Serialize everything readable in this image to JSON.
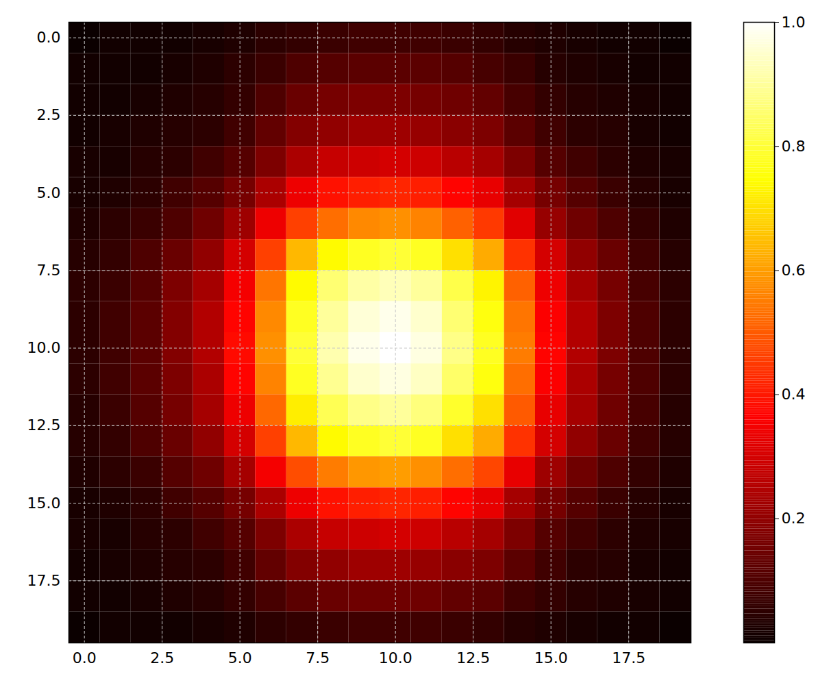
{
  "chart_data": {
    "type": "heatmap",
    "x": [
      0,
      1,
      2,
      3,
      4,
      5,
      6,
      7,
      8,
      9,
      10,
      11,
      12,
      13,
      14,
      15,
      16,
      17,
      18,
      19
    ],
    "y": [
      0,
      1,
      2,
      3,
      4,
      5,
      6,
      7,
      8,
      9,
      10,
      11,
      12,
      13,
      14,
      15,
      16,
      17,
      18,
      19
    ],
    "xlim": [
      -0.5,
      19.5
    ],
    "ylim": [
      19.5,
      -0.5
    ],
    "xticks": [
      {
        "value": 0,
        "label": "0.0"
      },
      2.5,
      {
        "value": 5,
        "label": "5.0"
      },
      7.5,
      {
        "value": 10,
        "label": "10.0"
      },
      12.5,
      {
        "value": 15,
        "label": "15.0"
      },
      17.5
    ],
    "yticks": [
      {
        "value": 0,
        "label": "0.0"
      },
      2.5,
      {
        "value": 5,
        "label": "5.0"
      },
      7.5,
      {
        "value": 10,
        "label": "10.0"
      },
      12.5,
      {
        "value": 15,
        "label": "15.0"
      },
      17.5
    ],
    "grid": true,
    "color": "hot",
    "color_range": [
      0,
      1
    ],
    "color_ticks": [
      0.2,
      0.4,
      0.6,
      0.8,
      {
        "value": 1,
        "label": "1.0"
      }
    ],
    "cells": [
      [
        0,
        0.01,
        0.01,
        0.01,
        0.02,
        0.03,
        0.05,
        0.06,
        0.07,
        0.08,
        0.08,
        0.08,
        0.07,
        0.06,
        0.04,
        0.03,
        0.02,
        0.01,
        0.01,
        0
      ],
      [
        0.01,
        0.01,
        0.01,
        0.02,
        0.03,
        0.05,
        0.07,
        0.1,
        0.11,
        0.12,
        0.12,
        0.12,
        0.11,
        0.09,
        0.07,
        0.04,
        0.03,
        0.02,
        0.01,
        0.01
      ],
      [
        0.01,
        0.01,
        0.02,
        0.03,
        0.04,
        0.06,
        0.1,
        0.14,
        0.16,
        0.17,
        0.17,
        0.16,
        0.15,
        0.13,
        0.09,
        0.06,
        0.04,
        0.03,
        0.02,
        0.01
      ],
      [
        0.01,
        0.02,
        0.03,
        0.04,
        0.05,
        0.08,
        0.13,
        0.18,
        0.2,
        0.22,
        0.22,
        0.21,
        0.19,
        0.17,
        0.12,
        0.08,
        0.05,
        0.04,
        0.02,
        0.01
      ],
      [
        0.02,
        0.02,
        0.04,
        0.05,
        0.08,
        0.11,
        0.17,
        0.24,
        0.28,
        0.29,
        0.3,
        0.29,
        0.26,
        0.23,
        0.17,
        0.11,
        0.08,
        0.05,
        0.03,
        0.02
      ],
      [
        0.02,
        0.03,
        0.05,
        0.08,
        0.11,
        0.16,
        0.24,
        0.34,
        0.39,
        0.41,
        0.42,
        0.41,
        0.37,
        0.33,
        0.23,
        0.16,
        0.11,
        0.07,
        0.04,
        0.02
      ],
      [
        0.03,
        0.05,
        0.07,
        0.1,
        0.15,
        0.22,
        0.34,
        0.46,
        0.53,
        0.57,
        0.58,
        0.56,
        0.51,
        0.45,
        0.32,
        0.21,
        0.15,
        0.1,
        0.06,
        0.03
      ],
      [
        0.04,
        0.06,
        0.1,
        0.14,
        0.2,
        0.3,
        0.46,
        0.64,
        0.74,
        0.78,
        0.8,
        0.78,
        0.7,
        0.62,
        0.44,
        0.3,
        0.2,
        0.14,
        0.08,
        0.04
      ],
      [
        0.05,
        0.07,
        0.11,
        0.17,
        0.23,
        0.35,
        0.54,
        0.74,
        0.86,
        0.91,
        0.93,
        0.9,
        0.82,
        0.73,
        0.51,
        0.34,
        0.23,
        0.16,
        0.09,
        0.05
      ],
      [
        0.05,
        0.08,
        0.12,
        0.18,
        0.25,
        0.37,
        0.57,
        0.78,
        0.9,
        0.96,
        0.98,
        0.95,
        0.86,
        0.76,
        0.54,
        0.36,
        0.25,
        0.17,
        0.1,
        0.05
      ],
      [
        0.05,
        0.08,
        0.12,
        0.18,
        0.25,
        0.38,
        0.58,
        0.8,
        0.92,
        0.98,
        1,
        0.97,
        0.88,
        0.78,
        0.55,
        0.37,
        0.25,
        0.17,
        0.1,
        0.05
      ],
      [
        0.05,
        0.08,
        0.12,
        0.17,
        0.24,
        0.37,
        0.56,
        0.78,
        0.89,
        0.95,
        0.97,
        0.94,
        0.85,
        0.76,
        0.53,
        0.36,
        0.24,
        0.16,
        0.1,
        0.05
      ],
      [
        0.04,
        0.07,
        0.11,
        0.16,
        0.23,
        0.34,
        0.52,
        0.72,
        0.83,
        0.88,
        0.9,
        0.87,
        0.79,
        0.7,
        0.5,
        0.33,
        0.23,
        0.15,
        0.09,
        0.04
      ],
      [
        0.04,
        0.06,
        0.1,
        0.14,
        0.2,
        0.3,
        0.46,
        0.64,
        0.74,
        0.78,
        0.8,
        0.78,
        0.7,
        0.62,
        0.44,
        0.3,
        0.2,
        0.14,
        0.08,
        0.04
      ],
      [
        0.03,
        0.05,
        0.07,
        0.11,
        0.15,
        0.23,
        0.35,
        0.48,
        0.55,
        0.59,
        0.6,
        0.58,
        0.53,
        0.47,
        0.33,
        0.22,
        0.15,
        0.1,
        0.06,
        0.03
      ],
      [
        0.02,
        0.03,
        0.05,
        0.08,
        0.11,
        0.16,
        0.24,
        0.34,
        0.39,
        0.41,
        0.42,
        0.41,
        0.37,
        0.33,
        0.23,
        0.16,
        0.11,
        0.07,
        0.04,
        0.02
      ],
      [
        0.02,
        0.02,
        0.04,
        0.05,
        0.08,
        0.11,
        0.17,
        0.24,
        0.28,
        0.29,
        0.3,
        0.29,
        0.26,
        0.23,
        0.17,
        0.11,
        0.08,
        0.05,
        0.03,
        0.02
      ],
      [
        0.01,
        0.02,
        0.03,
        0.04,
        0.05,
        0.08,
        0.13,
        0.18,
        0.2,
        0.22,
        0.22,
        0.21,
        0.19,
        0.17,
        0.12,
        0.08,
        0.05,
        0.04,
        0.02,
        0.01
      ],
      [
        0.01,
        0.01,
        0.02,
        0.03,
        0.04,
        0.06,
        0.09,
        0.12,
        0.14,
        0.15,
        0.15,
        0.15,
        0.13,
        0.12,
        0.08,
        0.06,
        0.04,
        0.03,
        0.02,
        0.01
      ],
      [
        0,
        0.01,
        0.01,
        0.01,
        0.02,
        0.03,
        0.05,
        0.06,
        0.07,
        0.08,
        0.08,
        0.08,
        0.07,
        0.06,
        0.04,
        0.03,
        0.02,
        0.01,
        0.01,
        0
      ]
    ]
  }
}
